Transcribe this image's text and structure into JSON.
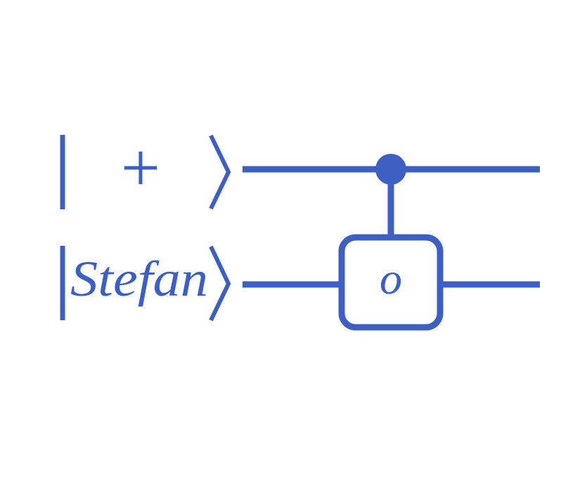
{
  "diagram": {
    "type": "quantum-circuit",
    "color": "#3d5fc4",
    "background": "#ffffff",
    "qubits": [
      {
        "state_label": "+"
      },
      {
        "state_label": "Stefan"
      }
    ],
    "gates": [
      {
        "kind": "controlled",
        "control_qubit": 0,
        "target_qubit": 1,
        "target_label": "o"
      }
    ]
  }
}
